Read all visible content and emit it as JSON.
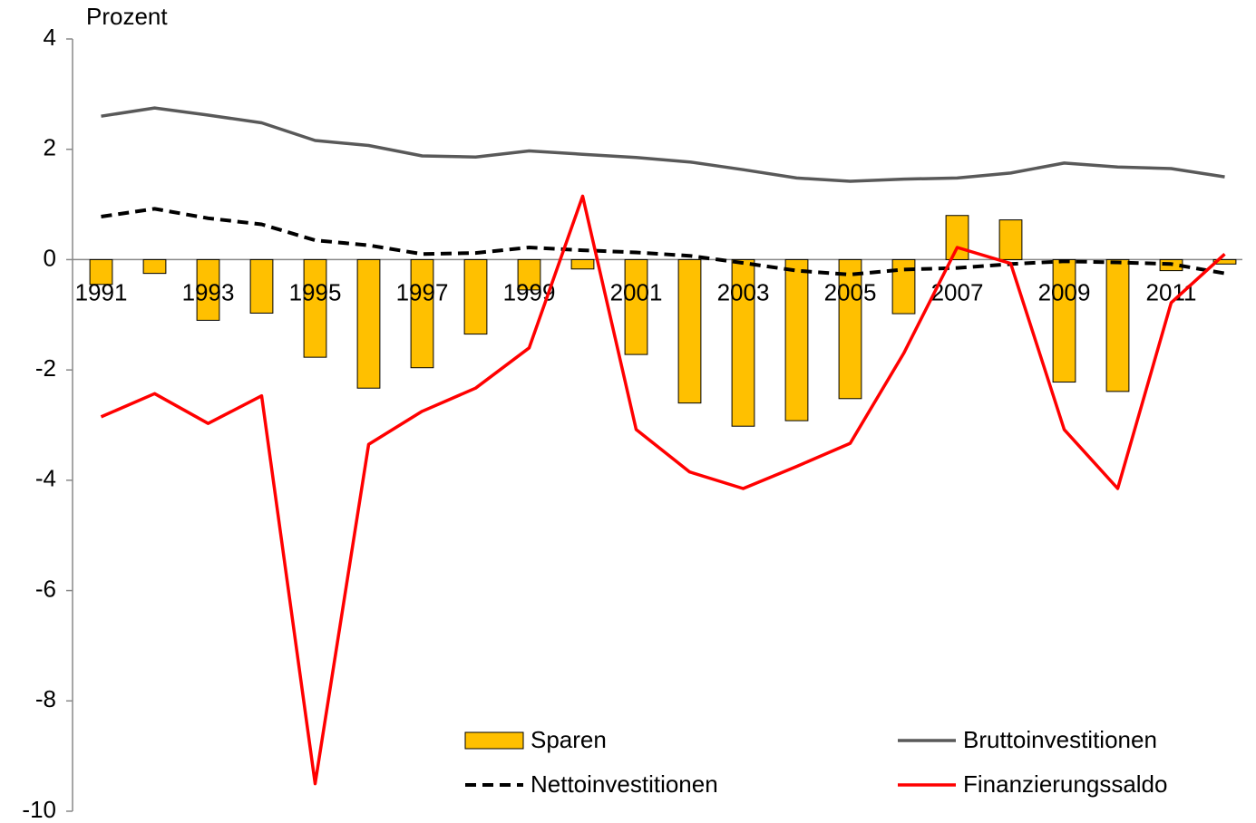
{
  "chart_data": {
    "type": "combo",
    "ylabel": "Prozent",
    "categories": [
      "1991",
      null,
      "1993",
      null,
      "1995",
      null,
      "1997",
      null,
      "1999",
      null,
      "2001",
      null,
      "2003",
      null,
      "2005",
      null,
      "2007",
      null,
      "2009",
      null,
      "2011",
      null
    ],
    "series": [
      {
        "name": "Sparen",
        "type": "bar",
        "color": "#FFC000",
        "values": [
          -0.45,
          -0.25,
          -1.1,
          -0.97,
          -1.77,
          -2.33,
          -1.96,
          -1.35,
          -0.55,
          -0.17,
          -1.72,
          -2.6,
          -3.02,
          -2.92,
          -2.52,
          -0.98,
          0.8,
          0.72,
          -2.22,
          -2.39,
          -0.2,
          -0.08
        ]
      },
      {
        "name": "Bruttoinvestitionen",
        "type": "line",
        "color": "#595959",
        "values": [
          2.6,
          2.75,
          2.62,
          2.48,
          2.16,
          2.07,
          1.88,
          1.86,
          1.97,
          1.91,
          1.85,
          1.77,
          1.63,
          1.48,
          1.42,
          1.46,
          1.48,
          1.57,
          1.75,
          1.68,
          1.65,
          1.5
        ]
      },
      {
        "name": "Nettoinvestitionen",
        "type": "line",
        "color": "#000000",
        "dashed": true,
        "values": [
          0.78,
          0.92,
          0.75,
          0.64,
          0.35,
          0.26,
          0.1,
          0.12,
          0.22,
          0.17,
          0.13,
          0.07,
          -0.06,
          -0.2,
          -0.27,
          -0.18,
          -0.15,
          -0.08,
          -0.03,
          -0.05,
          -0.08,
          -0.25
        ]
      },
      {
        "name": "Finanzierungssaldo",
        "type": "line",
        "color": "#FF0000",
        "values": [
          -2.85,
          -2.43,
          -2.97,
          -2.47,
          -9.5,
          -3.35,
          -2.75,
          -2.33,
          -1.6,
          1.15,
          -3.08,
          -3.85,
          -4.15,
          -3.75,
          -3.33,
          -1.7,
          0.22,
          -0.07,
          -3.08,
          -4.15,
          -0.78,
          0.1
        ]
      }
    ],
    "ylim": [
      -10,
      4
    ],
    "yticks": [
      -10,
      -8,
      -6,
      -4,
      -2,
      0,
      2,
      4
    ],
    "grid": false,
    "legend": "lower right"
  }
}
